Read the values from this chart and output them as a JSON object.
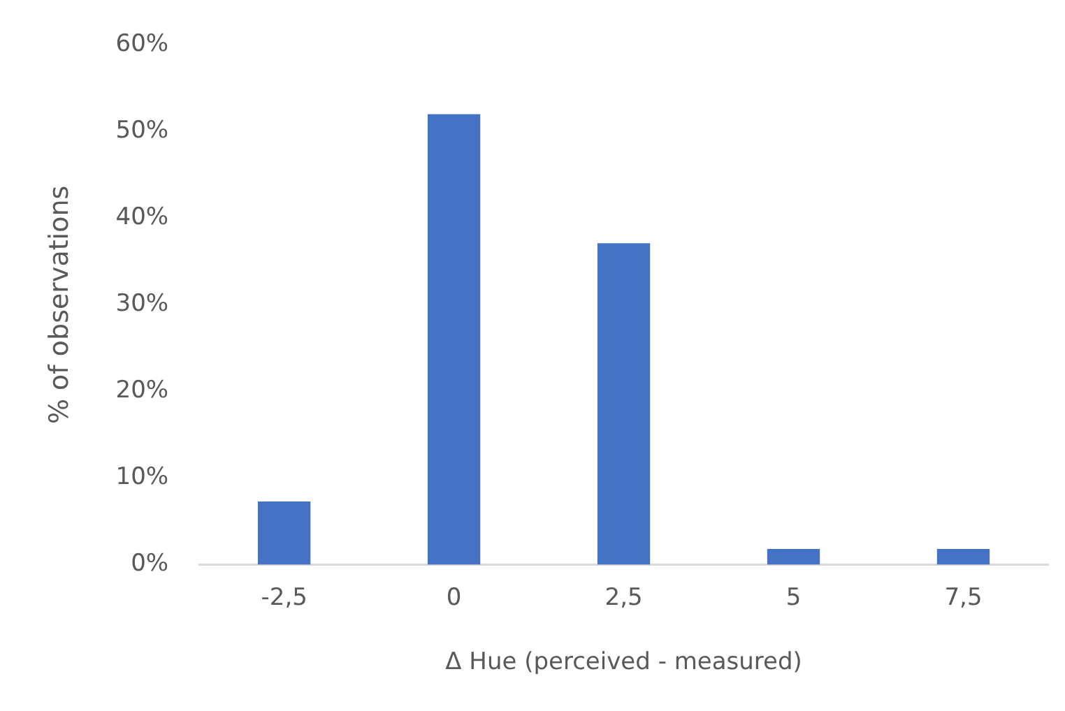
{
  "chart_data": {
    "type": "bar",
    "xlabel": "Δ Hue (perceived - measured)",
    "ylabel": "% of observations",
    "categories": [
      "-2,5",
      "0",
      "2,5",
      "5",
      "7,5"
    ],
    "values": [
      7.3,
      52,
      37.1,
      1.8,
      1.8
    ],
    "color": "#4472c4",
    "ylim": [
      0,
      60
    ],
    "yticks": [
      {
        "value": 0,
        "label": "0%"
      },
      {
        "value": 10,
        "label": "10%"
      },
      {
        "value": 20,
        "label": "20%"
      },
      {
        "value": 30,
        "label": "30%"
      },
      {
        "value": 40,
        "label": "40%"
      },
      {
        "value": 50,
        "label": "50%"
      },
      {
        "value": 60,
        "label": "60%"
      }
    ],
    "grid": false,
    "legend": false
  }
}
